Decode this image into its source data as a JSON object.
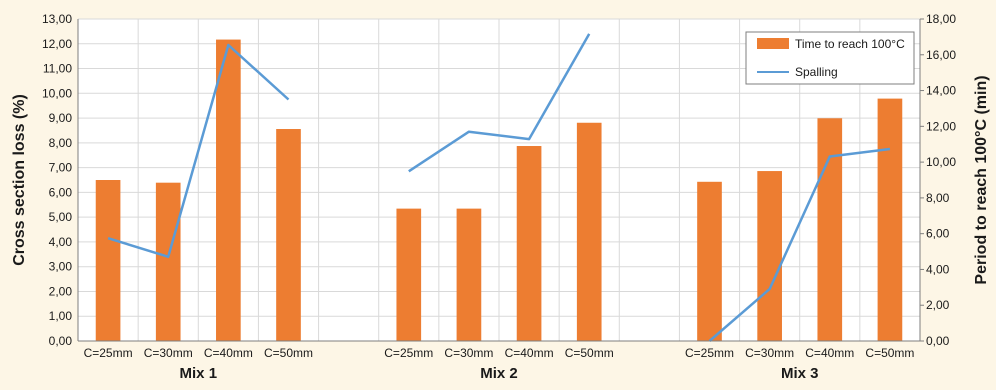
{
  "chart_data": {
    "type": "bar",
    "categories": [
      "C=25mm",
      "C=30mm",
      "C=40mm",
      "C=50mm",
      "C=25mm",
      "C=30mm",
      "C=40mm",
      "C=50mm",
      "C=25mm",
      "C=30mm",
      "C=40mm",
      "C=50mm"
    ],
    "groups": [
      "Mix 1",
      "Mix 2",
      "Mix 3"
    ],
    "series": [
      {
        "name": "Time to reach 100°C",
        "type": "bar",
        "axis": "right",
        "color": "#ed7d31",
        "values": [
          9.0,
          8.85,
          16.85,
          11.85,
          7.4,
          7.4,
          10.9,
          12.2,
          8.9,
          9.5,
          12.45,
          13.55
        ]
      },
      {
        "name": "Spalling",
        "type": "line",
        "axis": "left",
        "color": "#5b9bd5",
        "values": [
          4.15,
          3.4,
          11.95,
          9.75,
          6.85,
          8.45,
          8.15,
          12.4,
          0.0,
          2.1,
          7.45,
          7.75
        ]
      }
    ],
    "ylabel": "Cross section loss (%)",
    "y2label": "Period to reach 100°C (min)",
    "ylim": [
      0,
      13
    ],
    "y2lim": [
      0,
      18
    ],
    "yticks": [
      "0,00",
      "1,00",
      "2,00",
      "3,00",
      "4,00",
      "5,00",
      "6,00",
      "7,00",
      "8,00",
      "9,00",
      "10,00",
      "11,00",
      "12,00",
      "13,00"
    ],
    "y2ticks": [
      "0,00",
      "2,00",
      "4,00",
      "6,00",
      "8,00",
      "10,00",
      "12,00",
      "14,00",
      "16,00",
      "18,00"
    ],
    "legend": "top-right",
    "grid": true
  }
}
